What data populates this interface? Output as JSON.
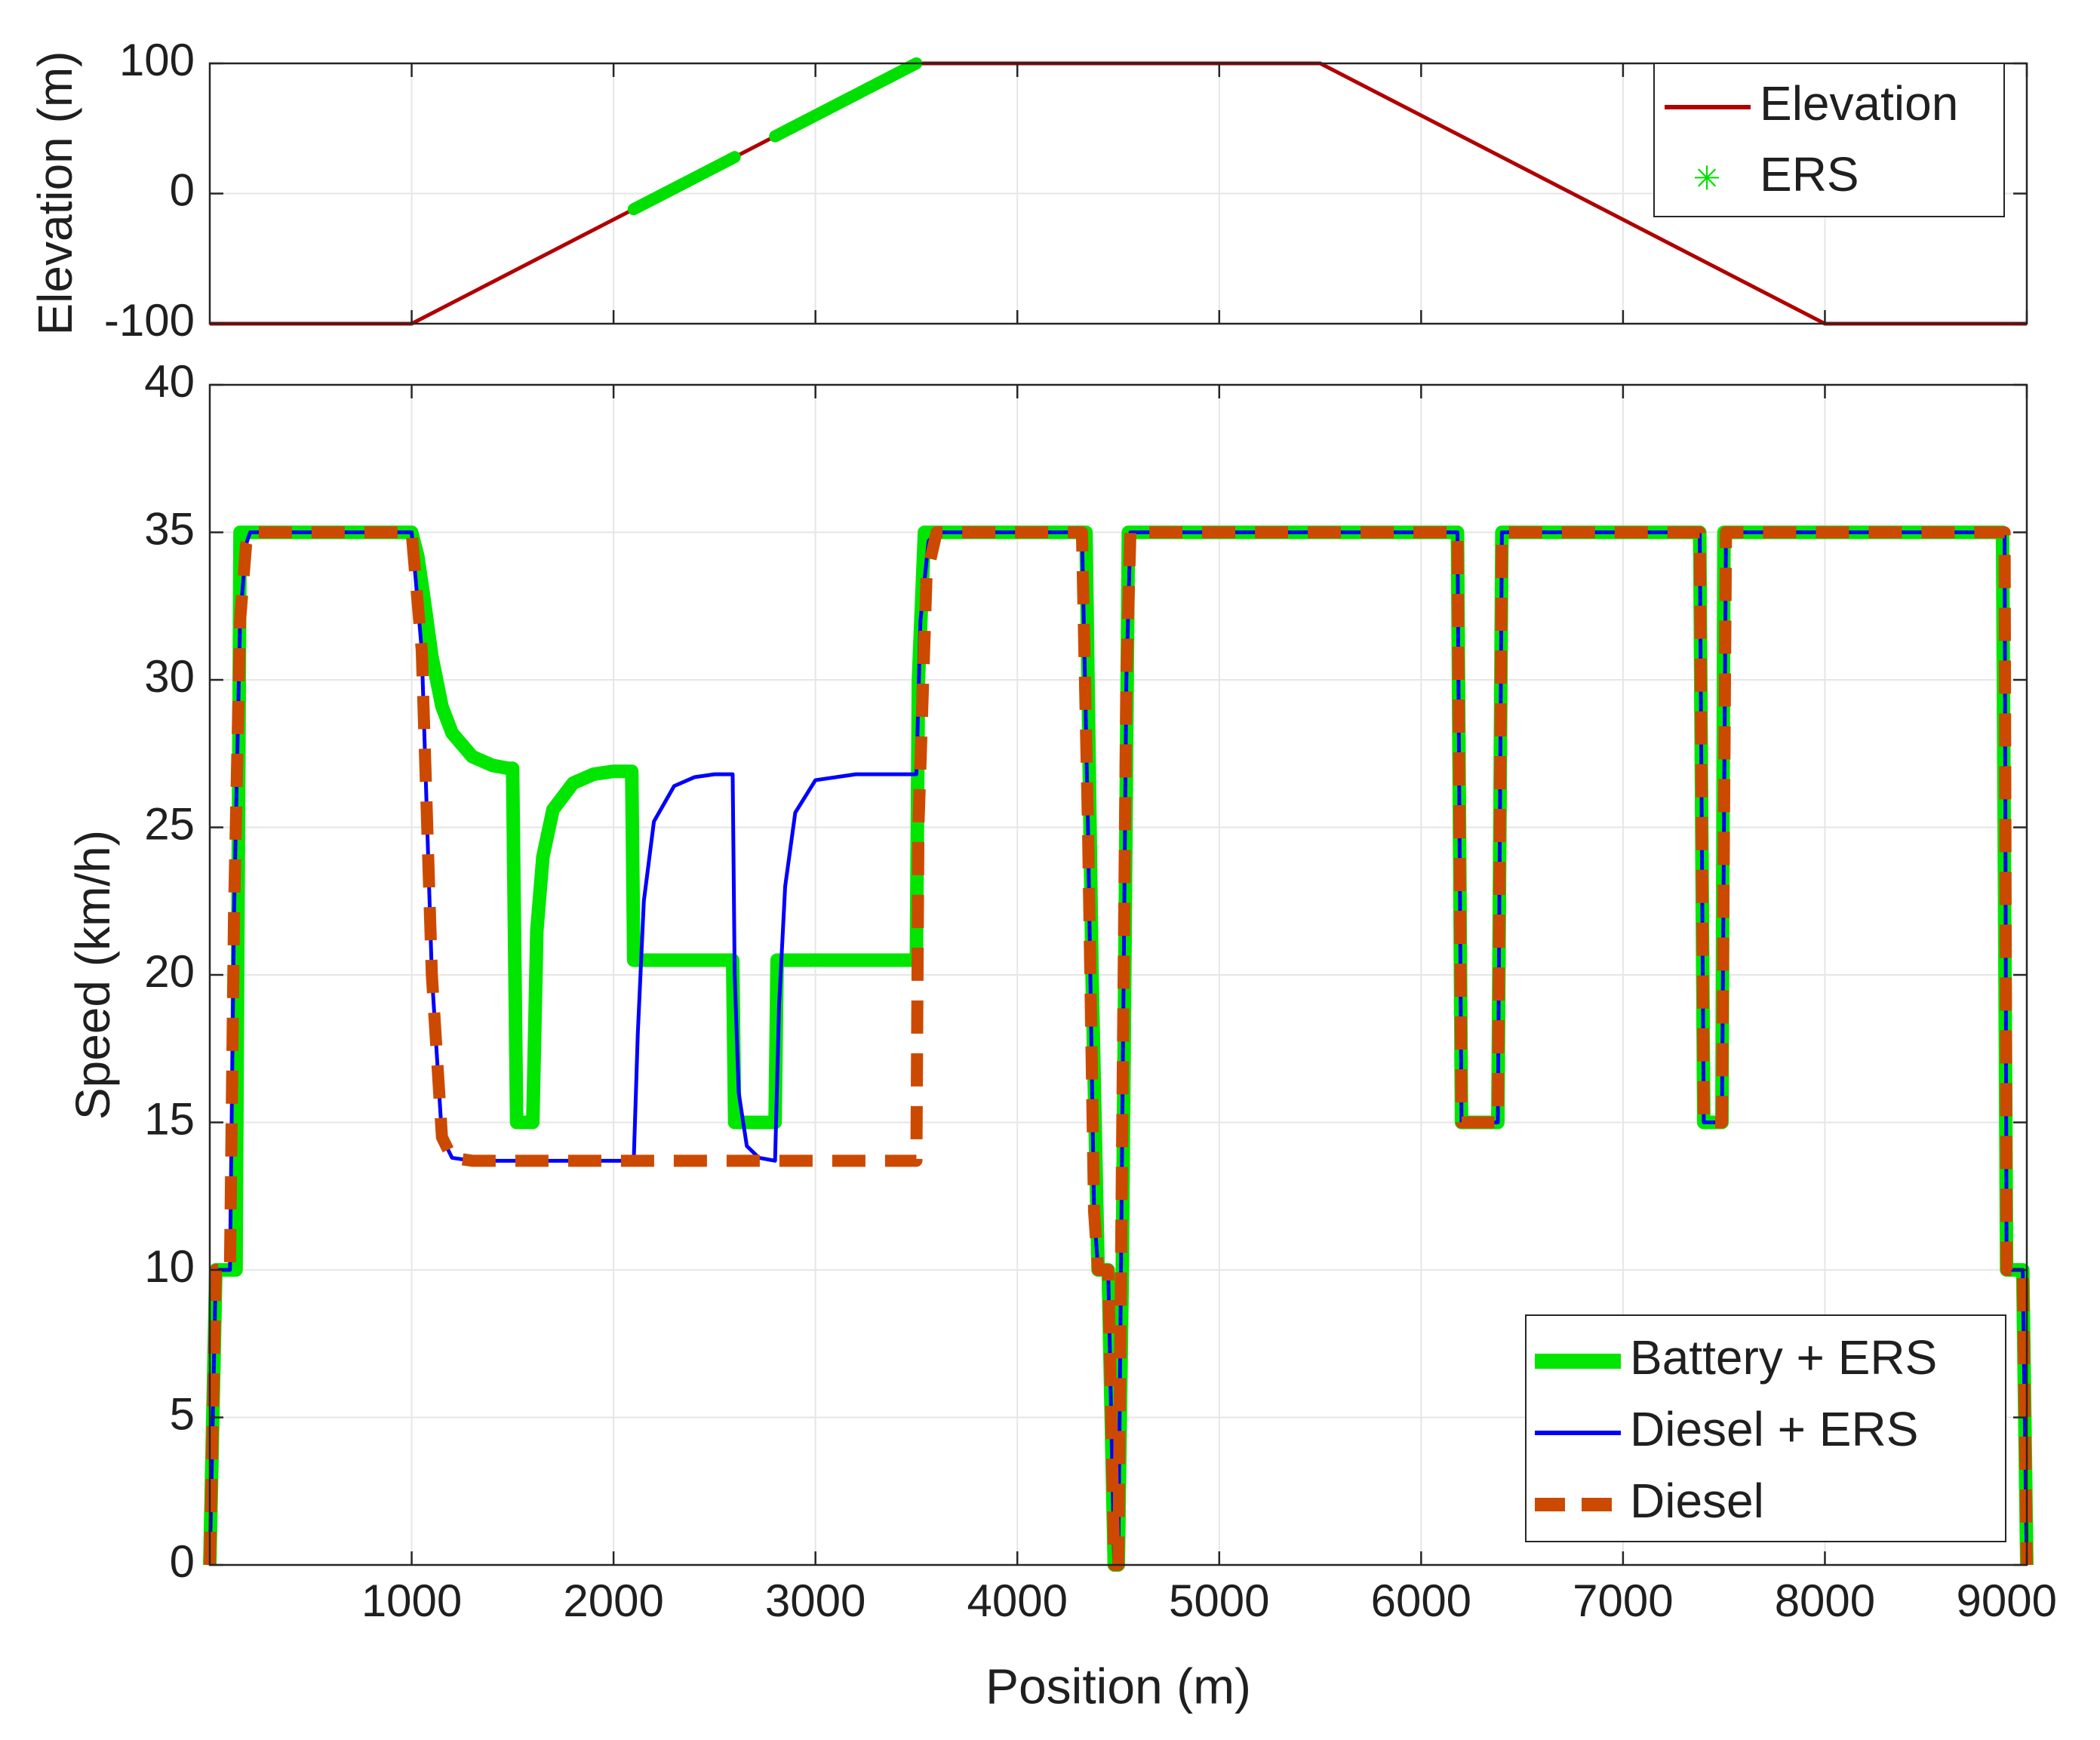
{
  "colors": {
    "elevation": "#b00000",
    "ers": "#00e000",
    "battery_ers": "#00e600",
    "diesel_ers": "#0000ff",
    "diesel": "#cc4a00",
    "grid": "#e6e6e6",
    "axis": "#262626"
  },
  "chart_data": [
    {
      "type": "line",
      "panel": "top",
      "xlabel": "",
      "ylabel": "Elevation (m)",
      "xlim": [
        0,
        9000
      ],
      "ylim": [
        -100,
        100
      ],
      "xticks": [
        1000,
        2000,
        3000,
        4000,
        5000,
        6000,
        7000,
        8000,
        9000
      ],
      "yticks": [
        -100,
        0,
        100
      ],
      "ytick_labels": [
        "-100",
        "0",
        "100"
      ],
      "grid": true,
      "legend": "top-right",
      "series": [
        {
          "name": "Elevation",
          "x": [
            0,
            1000,
            3500,
            5500,
            8000,
            9000
          ],
          "y": [
            -100,
            -100,
            100,
            100,
            -100,
            -100
          ]
        },
        {
          "name": "ERS",
          "segments": [
            {
              "x": [
                2100,
                2600
              ],
              "y": [
                -12,
                28
              ]
            },
            {
              "x": [
                2800,
                3500
              ],
              "y": [
                44,
                100
              ]
            }
          ]
        }
      ]
    },
    {
      "type": "line",
      "panel": "bottom",
      "xlabel": "Position (m)",
      "ylabel": "Speed (km/h)",
      "xlim": [
        0,
        9000
      ],
      "ylim": [
        0,
        40
      ],
      "xticks": [
        1000,
        2000,
        3000,
        4000,
        5000,
        6000,
        7000,
        8000,
        9000
      ],
      "xtick_labels": [
        "1000",
        "2000",
        "3000",
        "4000",
        "5000",
        "6000",
        "7000",
        "8000",
        "9000"
      ],
      "yticks": [
        0,
        5,
        10,
        15,
        20,
        25,
        30,
        35,
        40
      ],
      "ytick_labels": [
        "0",
        "5",
        "10",
        "15",
        "20",
        "25",
        "30",
        "35",
        "40"
      ],
      "grid": true,
      "legend": "bottom-right",
      "series": [
        {
          "name": "Battery + ERS",
          "x": [
            0,
            30,
            60,
            100,
            130,
            150,
            200,
            1000,
            1030,
            1060,
            1100,
            1150,
            1200,
            1300,
            1400,
            1480,
            1500,
            1520,
            1560,
            1600,
            1620,
            1650,
            1700,
            1800,
            1900,
            2000,
            2090,
            2100,
            2110,
            2200,
            2500,
            2590,
            2600,
            2610,
            2780,
            2800,
            2810,
            3000,
            3200,
            3490,
            3500,
            3510,
            3540,
            3560,
            4330,
            4340,
            4370,
            4400,
            4430,
            4450,
            4480,
            4500,
            4520,
            4550,
            6150,
            6180,
            6200,
            6220,
            6350,
            6380,
            6400,
            7330,
            7380,
            7400,
            7460,
            7490,
            7500,
            8850,
            8880,
            8900,
            8960,
            8980,
            9000
          ],
          "y": [
            0,
            10,
            10,
            10,
            10,
            35,
            35,
            35,
            34.2,
            32.8,
            30.8,
            29.1,
            28.2,
            27.4,
            27.1,
            27,
            27,
            15,
            15,
            15,
            21.5,
            24,
            25.6,
            26.5,
            26.8,
            26.9,
            26.9,
            20.5,
            20.5,
            20.5,
            20.5,
            20.5,
            15,
            15,
            15,
            15,
            20.5,
            20.5,
            20.5,
            20.5,
            20.5,
            30,
            35,
            35,
            35,
            35,
            20,
            10,
            10,
            10,
            0,
            0,
            10,
            35,
            35,
            35,
            15,
            15,
            15,
            15,
            35,
            35,
            35,
            15,
            15,
            15,
            35,
            35,
            35,
            10,
            10,
            10,
            0
          ]
        },
        {
          "name": "Diesel + ERS",
          "x": [
            0,
            30,
            60,
            100,
            120,
            150,
            180,
            200,
            1000,
            1050,
            1100,
            1150,
            1200,
            1300,
            1500,
            2000,
            2100,
            2120,
            2150,
            2200,
            2300,
            2400,
            2500,
            2590,
            2600,
            2620,
            2660,
            2720,
            2800,
            2820,
            2850,
            2900,
            3000,
            3200,
            3500,
            3520,
            3560,
            3600,
            4320,
            4350,
            4380,
            4400,
            4450,
            4480,
            4500,
            4520,
            4540,
            4560,
            6150,
            6180,
            6200,
            6220,
            6350,
            6380,
            6400,
            7340,
            7380,
            7400,
            7460,
            7490,
            7510,
            8860,
            8890,
            8900,
            8960,
            8980,
            9000
          ],
          "y": [
            0,
            10,
            10,
            10,
            22,
            32,
            34.6,
            35,
            35,
            31,
            20,
            14.5,
            13.8,
            13.7,
            13.7,
            13.7,
            13.7,
            18,
            22.5,
            25.2,
            26.4,
            26.7,
            26.8,
            26.8,
            20,
            16,
            14.2,
            13.8,
            13.7,
            19,
            23,
            25.5,
            26.6,
            26.8,
            26.8,
            32,
            34.7,
            35,
            35,
            25,
            12,
            10,
            10,
            0,
            0,
            15,
            30,
            35,
            35,
            35,
            15,
            15,
            15,
            15,
            35,
            35,
            35,
            15,
            15,
            15,
            35,
            35,
            35,
            10,
            10,
            10,
            0
          ]
        },
        {
          "name": "Diesel",
          "x": [
            0,
            30,
            60,
            100,
            120,
            150,
            180,
            200,
            1000,
            1050,
            1100,
            1150,
            1200,
            1300,
            1500,
            2000,
            2500,
            3000,
            3500,
            3510,
            3550,
            3600,
            4320,
            4350,
            4380,
            4400,
            4450,
            4480,
            4500,
            4520,
            4540,
            4560,
            6150,
            6180,
            6200,
            6220,
            6350,
            6380,
            6400,
            7340,
            7380,
            7400,
            7460,
            7490,
            7510,
            8860,
            8890,
            8900,
            8960,
            8980,
            9000
          ],
          "y": [
            0,
            10,
            10,
            10,
            22,
            32,
            34.6,
            35,
            35,
            31,
            20,
            14.5,
            13.8,
            13.7,
            13.7,
            13.7,
            13.7,
            13.7,
            13.7,
            25,
            33.5,
            35,
            35,
            25,
            12,
            10,
            10,
            0,
            0,
            15,
            30,
            35,
            35,
            35,
            15,
            15,
            15,
            15,
            35,
            35,
            35,
            15,
            15,
            15,
            35,
            35,
            35,
            10,
            10,
            10,
            0
          ]
        }
      ]
    }
  ]
}
